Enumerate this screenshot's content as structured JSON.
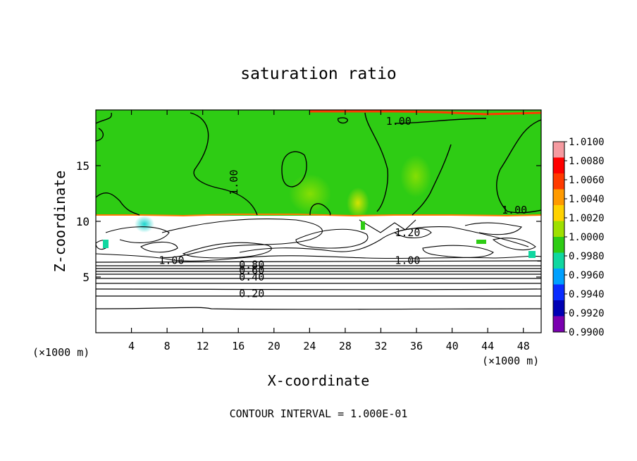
{
  "chart_data": {
    "type": "heatmap",
    "title": "saturation ratio",
    "xlabel": "X-coordinate",
    "ylabel": "Z-coordinate",
    "x_unit": "(×1000 m)",
    "z_unit": "(×1000 m)",
    "footer": "CONTOUR INTERVAL = 1.000E-01",
    "xlim": [
      0,
      50
    ],
    "ylim": [
      0,
      20
    ],
    "x_ticks": [
      4,
      8,
      12,
      16,
      20,
      24,
      28,
      32,
      36,
      40,
      44,
      48
    ],
    "y_ticks": [
      5,
      10,
      15
    ],
    "colorbar": {
      "levels": [
        "1.0100",
        "1.0080",
        "1.0060",
        "1.0040",
        "1.0020",
        "1.0000",
        "0.9980",
        "0.9960",
        "0.9940",
        "0.9920",
        "0.9900"
      ],
      "colors": [
        "#f59aa0",
        "#ff0000",
        "#ff3a00",
        "#ff9a00",
        "#ffd200",
        "#9ee000",
        "#2ecc14",
        "#10d7a0",
        "#00a0ff",
        "#0a2cff",
        "#0000b4",
        "#7a00b0"
      ]
    },
    "contour_labels": [
      {
        "text": "1.00",
        "x": 34.0,
        "z": 19.0
      },
      {
        "text": "1.00",
        "x": 15.5,
        "z": 13.5
      },
      {
        "text": "1.00",
        "x": 47.0,
        "z": 11.0
      },
      {
        "text": "1.20",
        "x": 35.0,
        "z": 9.0
      },
      {
        "text": "1.00",
        "x": 8.5,
        "z": 6.5
      },
      {
        "text": "1.00",
        "x": 35.0,
        "z": 6.5
      },
      {
        "text": "0.80",
        "x": 17.5,
        "z": 6.1
      },
      {
        "text": "0.60",
        "x": 17.5,
        "z": 5.6
      },
      {
        "text": "0.40",
        "x": 17.5,
        "z": 5.0
      },
      {
        "text": "0.20",
        "x": 17.5,
        "z": 3.5
      }
    ]
  }
}
